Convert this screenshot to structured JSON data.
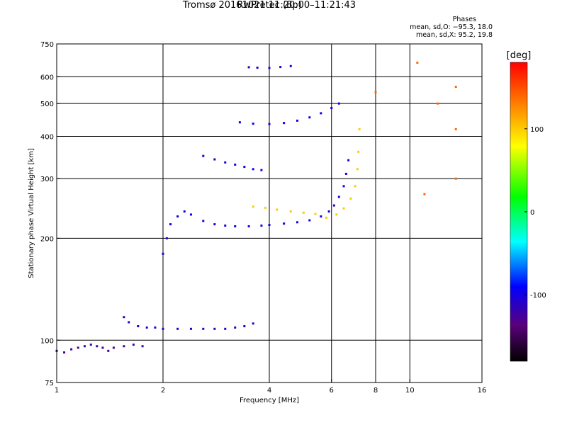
{
  "title_line1": "Tromsø 20161021 11:20:00–11:21:43",
  "title_line2": "RwPretec (8p)",
  "phases": {
    "heading": "Phases",
    "o_mode": "mean, sd,O: −95.3, 18.0",
    "x_mode": "mean, sd,X: 95.2, 19.8"
  },
  "chart_data": {
    "type": "scatter",
    "xlabel": "Frequency [MHz]",
    "ylabel": "Stationary phase Virtual Height [km]",
    "xscale": "log",
    "yscale": "log",
    "xlim": [
      1,
      16
    ],
    "ylim": [
      75,
      750
    ],
    "x_ticks": [
      1,
      2,
      4,
      6,
      8,
      10,
      16
    ],
    "y_ticks": [
      75,
      100,
      200,
      300,
      400,
      500,
      600,
      750
    ],
    "grid": true,
    "colorbar": {
      "label": "[deg]",
      "range": [
        -180,
        180
      ],
      "ticks": [
        -100,
        0,
        100
      ]
    },
    "series": [
      {
        "phase": -125,
        "points": [
          [
            1.0,
            93
          ],
          [
            1.05,
            92
          ],
          [
            1.1,
            94
          ],
          [
            1.15,
            95
          ],
          [
            1.2,
            96
          ],
          [
            1.25,
            97
          ],
          [
            1.3,
            96
          ],
          [
            1.35,
            95
          ],
          [
            1.4,
            93
          ],
          [
            1.45,
            95
          ],
          [
            1.55,
            96
          ],
          [
            1.65,
            97
          ],
          [
            1.75,
            96
          ]
        ]
      },
      {
        "phase": -110,
        "points": [
          [
            1.55,
            117
          ],
          [
            1.6,
            113
          ],
          [
            1.7,
            110
          ],
          [
            1.8,
            109
          ],
          [
            1.9,
            109
          ],
          [
            2.0,
            108
          ],
          [
            2.2,
            108
          ],
          [
            2.4,
            108
          ],
          [
            2.6,
            108
          ],
          [
            2.8,
            108
          ],
          [
            3.0,
            108
          ],
          [
            3.2,
            109
          ],
          [
            3.4,
            110
          ],
          [
            3.6,
            112
          ]
        ]
      },
      {
        "phase": -100,
        "points": [
          [
            2.0,
            180
          ],
          [
            2.05,
            200
          ],
          [
            2.1,
            220
          ],
          [
            2.2,
            232
          ],
          [
            2.3,
            240
          ],
          [
            2.4,
            235
          ],
          [
            2.6,
            225
          ],
          [
            2.8,
            220
          ],
          [
            3.0,
            218
          ],
          [
            3.2,
            217
          ],
          [
            3.5,
            217
          ],
          [
            3.8,
            218
          ],
          [
            4.0,
            219
          ],
          [
            4.4,
            221
          ],
          [
            4.8,
            223
          ],
          [
            5.2,
            226
          ],
          [
            5.6,
            232
          ],
          [
            5.9,
            240
          ],
          [
            6.1,
            250
          ],
          [
            6.3,
            265
          ],
          [
            6.5,
            285
          ],
          [
            6.6,
            310
          ],
          [
            6.7,
            340
          ]
        ]
      },
      {
        "phase": -95,
        "points": [
          [
            3.3,
            440
          ],
          [
            3.6,
            436
          ],
          [
            4.0,
            435
          ],
          [
            4.4,
            438
          ],
          [
            4.8,
            445
          ],
          [
            5.2,
            455
          ],
          [
            5.6,
            468
          ],
          [
            6.0,
            485
          ],
          [
            6.3,
            500
          ]
        ]
      },
      {
        "phase": -100,
        "points": [
          [
            2.6,
            350
          ],
          [
            2.8,
            342
          ],
          [
            3.0,
            335
          ],
          [
            3.2,
            330
          ],
          [
            3.4,
            325
          ],
          [
            3.6,
            320
          ],
          [
            3.8,
            318
          ]
        ]
      },
      {
        "phase": -105,
        "points": [
          [
            3.5,
            640
          ],
          [
            3.7,
            638
          ],
          [
            4.0,
            637
          ],
          [
            4.3,
            641
          ],
          [
            4.6,
            645
          ]
        ]
      },
      {
        "phase": 100,
        "points": [
          [
            3.6,
            248
          ],
          [
            3.9,
            246
          ],
          [
            4.2,
            243
          ],
          [
            4.6,
            240
          ],
          [
            5.0,
            238
          ],
          [
            5.4,
            236
          ],
          [
            5.8,
            230
          ],
          [
            6.2,
            235
          ],
          [
            6.5,
            245
          ],
          [
            6.8,
            262
          ],
          [
            7.0,
            285
          ],
          [
            7.1,
            320
          ],
          [
            7.15,
            360
          ],
          [
            7.2,
            420
          ]
        ]
      },
      {
        "phase": 140,
        "points": [
          [
            8.0,
            540
          ],
          [
            10.5,
            660
          ],
          [
            13.5,
            560
          ],
          [
            13.5,
            420
          ],
          [
            13.5,
            300
          ],
          [
            11,
            270
          ],
          [
            12,
            500
          ]
        ]
      }
    ]
  }
}
